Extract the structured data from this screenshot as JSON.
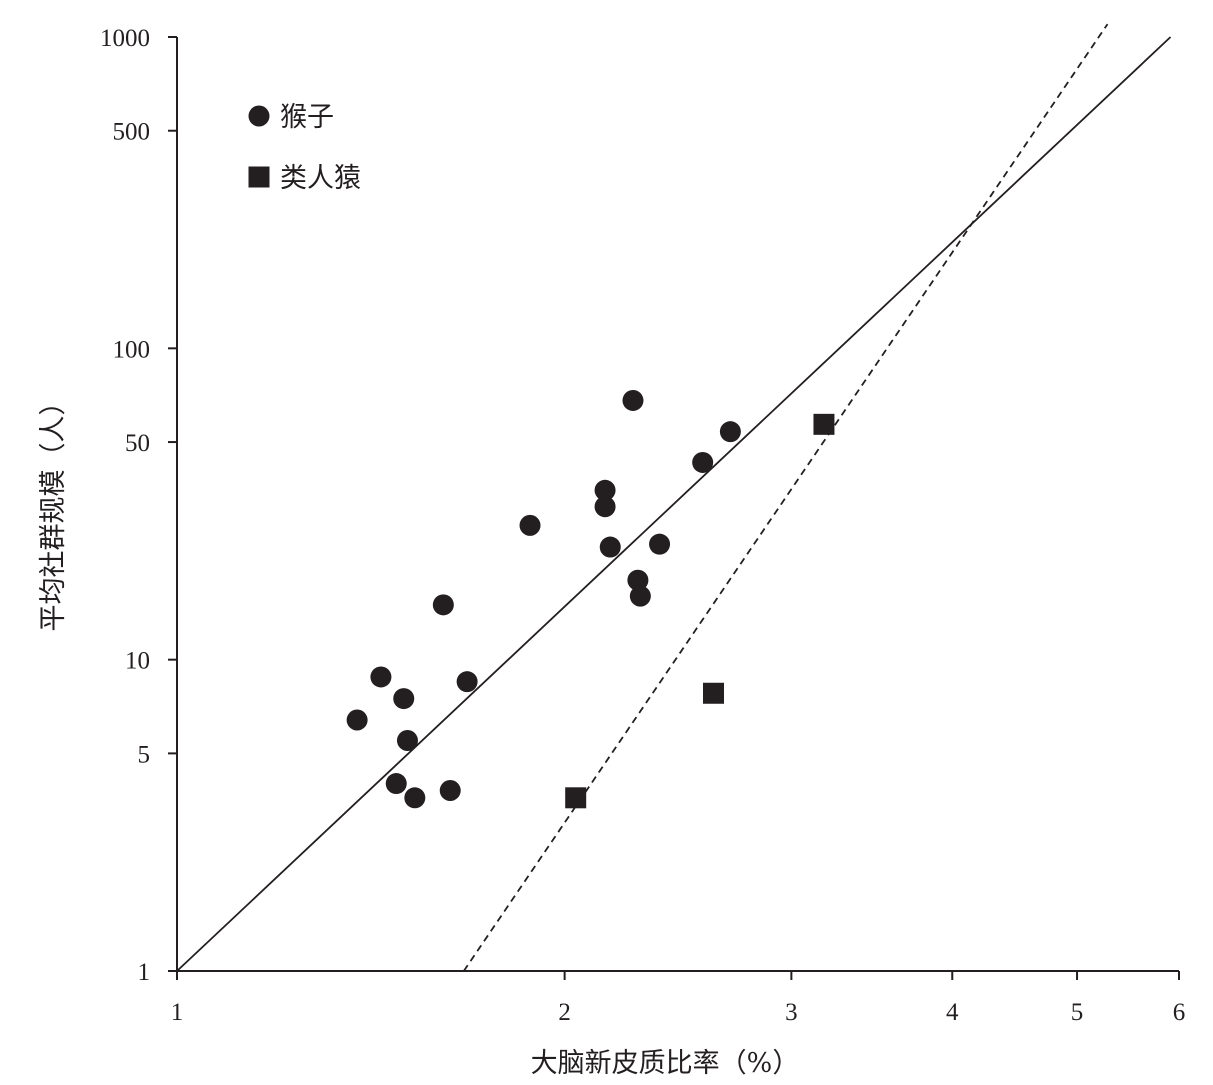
{
  "chart_data": {
    "type": "scatter",
    "title": "",
    "xlabel": "大脑新皮质比率（%）",
    "ylabel": "平均社群规模（人）",
    "x_scale": "log",
    "y_scale": "log",
    "xlim": [
      1,
      6
    ],
    "ylim": [
      1,
      1000
    ],
    "x_ticks": [
      1,
      2,
      3,
      4,
      5,
      6
    ],
    "x_tick_labels": [
      "1",
      "2",
      "3",
      "4",
      "5",
      "6"
    ],
    "y_ticks": [
      1,
      5,
      10,
      50,
      100,
      500,
      1000
    ],
    "y_tick_labels": [
      "1",
      "5",
      "10",
      "50",
      "100",
      "500",
      "1000"
    ],
    "grid": false,
    "legend_position": "top-left",
    "color": "#231f20",
    "series": [
      {
        "name": "猴子",
        "marker": "circle",
        "points": [
          {
            "x": 1.38,
            "y": 6.4
          },
          {
            "x": 1.44,
            "y": 8.8
          },
          {
            "x": 1.5,
            "y": 7.5
          },
          {
            "x": 1.51,
            "y": 5.5
          },
          {
            "x": 1.48,
            "y": 4.0
          },
          {
            "x": 1.53,
            "y": 3.6
          },
          {
            "x": 1.63,
            "y": 3.8
          },
          {
            "x": 1.61,
            "y": 15.0
          },
          {
            "x": 1.68,
            "y": 8.5
          },
          {
            "x": 1.88,
            "y": 27.0
          },
          {
            "x": 2.15,
            "y": 35.0
          },
          {
            "x": 2.15,
            "y": 31.0
          },
          {
            "x": 2.17,
            "y": 23.0
          },
          {
            "x": 2.26,
            "y": 68.0
          },
          {
            "x": 2.28,
            "y": 18.0
          },
          {
            "x": 2.29,
            "y": 16.0
          },
          {
            "x": 2.37,
            "y": 23.5
          },
          {
            "x": 2.56,
            "y": 43.0
          },
          {
            "x": 2.69,
            "y": 54.0
          }
        ]
      },
      {
        "name": "类人猿",
        "marker": "square",
        "points": [
          {
            "x": 2.04,
            "y": 3.6
          },
          {
            "x": 2.61,
            "y": 7.8
          },
          {
            "x": 3.18,
            "y": 57.0
          }
        ]
      }
    ],
    "lines": [
      {
        "style": "solid",
        "from": {
          "x": 1.0,
          "y": 1.0
        },
        "to": {
          "x": 5.91,
          "y": 1000
        }
      },
      {
        "style": "dashed",
        "from": {
          "x": 1.67,
          "y": 1.0
        },
        "to": {
          "x": 5.28,
          "y": 1100
        }
      }
    ]
  }
}
